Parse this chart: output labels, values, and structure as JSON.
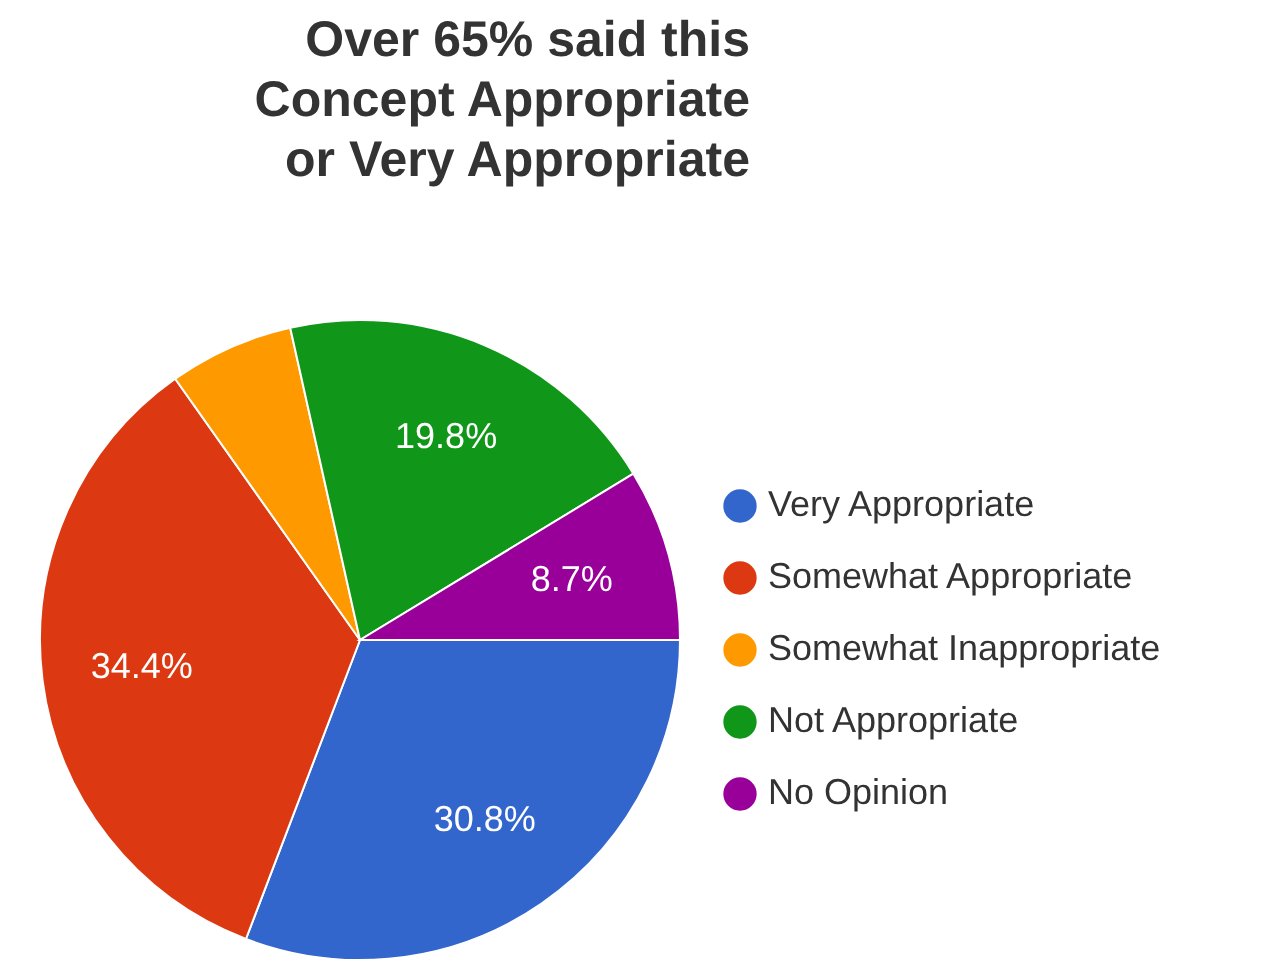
{
  "chart_data": {
    "type": "pie",
    "categories": [
      "Very Appropriate",
      "Somewhat Appropriate",
      "Somewhat Inappropriate",
      "Not Appropriate",
      "No Opinion"
    ],
    "values": [
      30.8,
      34.4,
      6.3,
      19.8,
      8.7
    ],
    "colors": [
      "#3366cc",
      "#dc3912",
      "#ff9900",
      "#109618",
      "#990099"
    ],
    "value_labels": [
      "30.8%",
      "34.4%",
      null,
      "19.8%",
      "8.7%"
    ],
    "annotations": [
      "Over 65% said this\nConcept Appropriate\nor Very Appropriate"
    ],
    "legend": "right"
  }
}
